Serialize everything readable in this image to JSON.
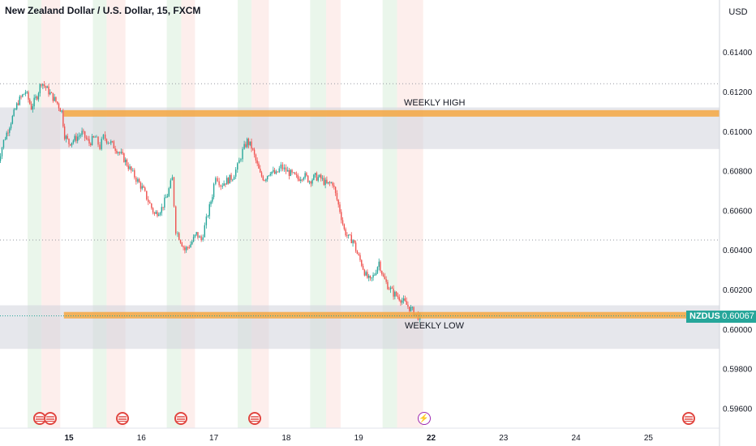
{
  "header": {
    "title": "New Zealand Dollar / U.S. Dollar, 15, FXCM",
    "currency": "USD"
  },
  "price_badge": {
    "ticker": "NZDUSD",
    "price": "0.60067",
    "color": "#26a69a"
  },
  "annotations": {
    "weekly_high": "WEEKLY HIGH",
    "weekly_low": "WEEKLY LOW"
  },
  "colors": {
    "up": "#26a69a",
    "down": "#ef5350",
    "level_line": "#f5a742",
    "zone": "#d1d4dc",
    "session_green": "#e8f5e9",
    "session_red": "#fdecea"
  },
  "event_icons": [
    {
      "type": "us-flag-icon",
      "day": 14.6
    },
    {
      "type": "us-flag-icon",
      "day": 14.74
    },
    {
      "type": "us-flag-icon",
      "day": 15.74
    },
    {
      "type": "us-flag-icon",
      "day": 16.55
    },
    {
      "type": "us-flag-icon",
      "day": 17.56
    },
    {
      "type": "lightning-icon",
      "day": 21.93
    },
    {
      "type": "us-flag-icon",
      "day": 25.57
    }
  ],
  "chart_data": {
    "type": "candlestick",
    "title": "New Zealand Dollar / U.S. Dollar, 15, FXCM",
    "symbol": "NZDUSD",
    "interval": "15",
    "x_tick_labels": [
      "15",
      "16",
      "17",
      "18",
      "19",
      "22",
      "23",
      "24",
      "25"
    ],
    "y_tick_labels": [
      "0.61400",
      "0.61200",
      "0.61000",
      "0.60800",
      "0.60600",
      "0.60400",
      "0.60200",
      "0.60000",
      "0.59800",
      "0.59600"
    ],
    "ylim": [
      0.5952,
      0.6162
    ],
    "last_price": 0.60067,
    "levels": [
      {
        "name": "WEEKLY HIGH",
        "price": 0.6109
      },
      {
        "name": "WEEKLY LOW",
        "price": 0.6007
      }
    ],
    "zones": [
      {
        "from": 0.6091,
        "to": 0.6112
      },
      {
        "from": 0.599,
        "to": 0.6012
      }
    ],
    "dotted_lines": [
      0.6124,
      0.6045
    ],
    "series": [
      {
        "values": [
          [
            14.01,
            0.608
          ],
          [
            14.12,
            0.6095
          ],
          [
            14.22,
            0.6105
          ],
          [
            14.32,
            0.6115
          ],
          [
            14.42,
            0.612
          ],
          [
            14.5,
            0.6112
          ],
          [
            14.58,
            0.6118
          ],
          [
            14.64,
            0.6125
          ],
          [
            14.7,
            0.6122
          ],
          [
            14.78,
            0.6118
          ],
          [
            14.86,
            0.6114
          ],
          [
            14.92,
            0.611
          ],
          [
            14.96,
            0.6098
          ],
          [
            15.02,
            0.6094
          ],
          [
            15.1,
            0.6096
          ],
          [
            15.2,
            0.6099
          ],
          [
            15.3,
            0.6094
          ],
          [
            15.38,
            0.6097
          ],
          [
            15.45,
            0.6092
          ],
          [
            15.5,
            0.6097
          ],
          [
            15.6,
            0.6094
          ],
          [
            15.7,
            0.609
          ],
          [
            15.78,
            0.6086
          ],
          [
            15.86,
            0.6081
          ],
          [
            15.95,
            0.6076
          ],
          [
            16.05,
            0.607
          ],
          [
            16.14,
            0.6063
          ],
          [
            16.2,
            0.6058
          ],
          [
            16.3,
            0.6061
          ],
          [
            16.38,
            0.6068
          ],
          [
            16.45,
            0.6076
          ],
          [
            16.5,
            0.605
          ],
          [
            16.56,
            0.6045
          ],
          [
            16.62,
            0.604
          ],
          [
            16.7,
            0.6043
          ],
          [
            16.78,
            0.6048
          ],
          [
            16.85,
            0.6045
          ],
          [
            16.92,
            0.6055
          ],
          [
            17.0,
            0.6068
          ],
          [
            17.05,
            0.6078
          ],
          [
            17.12,
            0.6073
          ],
          [
            17.2,
            0.6075
          ],
          [
            17.28,
            0.6077
          ],
          [
            17.35,
            0.6082
          ],
          [
            17.42,
            0.609
          ],
          [
            17.48,
            0.6095
          ],
          [
            17.54,
            0.6092
          ],
          [
            17.6,
            0.6085
          ],
          [
            17.66,
            0.6078
          ],
          [
            17.72,
            0.6076
          ],
          [
            17.8,
            0.608
          ],
          [
            17.88,
            0.6078
          ],
          [
            17.95,
            0.6082
          ],
          [
            18.02,
            0.608
          ],
          [
            18.1,
            0.6078
          ],
          [
            18.18,
            0.6076
          ],
          [
            18.26,
            0.6078
          ],
          [
            18.34,
            0.6075
          ],
          [
            18.42,
            0.6077
          ],
          [
            18.5,
            0.6076
          ],
          [
            18.58,
            0.6073
          ],
          [
            18.66,
            0.6074
          ],
          [
            18.7,
            0.6068
          ],
          [
            18.76,
            0.606
          ],
          [
            18.82,
            0.605
          ],
          [
            18.88,
            0.6046
          ],
          [
            18.94,
            0.6045
          ],
          [
            19.0,
            0.6038
          ],
          [
            19.06,
            0.6033
          ],
          [
            19.12,
            0.6027
          ],
          [
            19.18,
            0.6024
          ],
          [
            19.24,
            0.6028
          ],
          [
            19.3,
            0.6034
          ],
          [
            19.36,
            0.6026
          ],
          [
            19.42,
            0.6022
          ],
          [
            19.5,
            0.6018
          ],
          [
            19.58,
            0.6016
          ],
          [
            19.66,
            0.6013
          ],
          [
            19.74,
            0.601
          ],
          [
            19.82,
            0.6007
          ],
          [
            19.87,
            0.6006
          ]
        ]
      }
    ]
  }
}
